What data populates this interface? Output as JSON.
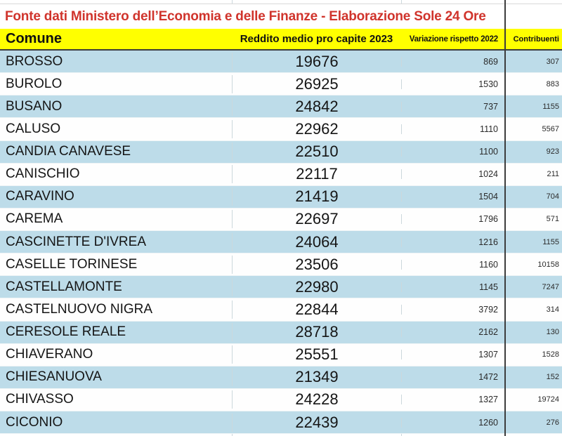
{
  "chart_data": {
    "type": "table",
    "title": "Fonte dati Ministero dell’Economia e delle Finanze - Elaborazione Sole 24 Ore",
    "columns": [
      "Comune",
      "Reddito medio pro capite 2023",
      "Variazione rispetto 2022",
      "Contribuenti"
    ],
    "rows": [
      [
        "BROSSO",
        19676,
        869,
        307
      ],
      [
        "BUROLO",
        26925,
        1530,
        883
      ],
      [
        "BUSANO",
        24842,
        737,
        1155
      ],
      [
        "CALUSO",
        22962,
        1110,
        5567
      ],
      [
        "CANDIA CANAVESE",
        22510,
        1100,
        923
      ],
      [
        "CANISCHIO",
        22117,
        1024,
        211
      ],
      [
        "CARAVINO",
        21419,
        1504,
        704
      ],
      [
        "CAREMA",
        22697,
        1796,
        571
      ],
      [
        "CASCINETTE D'IVREA",
        24064,
        1216,
        1155
      ],
      [
        "CASELLE TORINESE",
        23506,
        1160,
        10158
      ],
      [
        "CASTELLAMONTE",
        22980,
        1145,
        7247
      ],
      [
        "CASTELNUOVO NIGRA",
        22844,
        3792,
        314
      ],
      [
        "CERESOLE REALE",
        28718,
        2162,
        130
      ],
      [
        "CHIAVERANO",
        25551,
        1307,
        1528
      ],
      [
        "CHIESANUOVA",
        21349,
        1472,
        152
      ],
      [
        "CHIVASSO",
        24228,
        1327,
        19724
      ],
      [
        "CICONIO",
        22439,
        1260,
        276
      ]
    ],
    "layout": {
      "row_striping": "odd rows light blue, even rows white",
      "grid": "light vertical separators; dark vertical divider before last column"
    }
  },
  "colors": {
    "title_red": "#d0342c",
    "header_yellow": "#ffff00",
    "row_blue": "#bddce9",
    "row_white": "#fefefe",
    "divider_dark": "#3c3c3c",
    "grid_light": "#ccd8dc"
  }
}
